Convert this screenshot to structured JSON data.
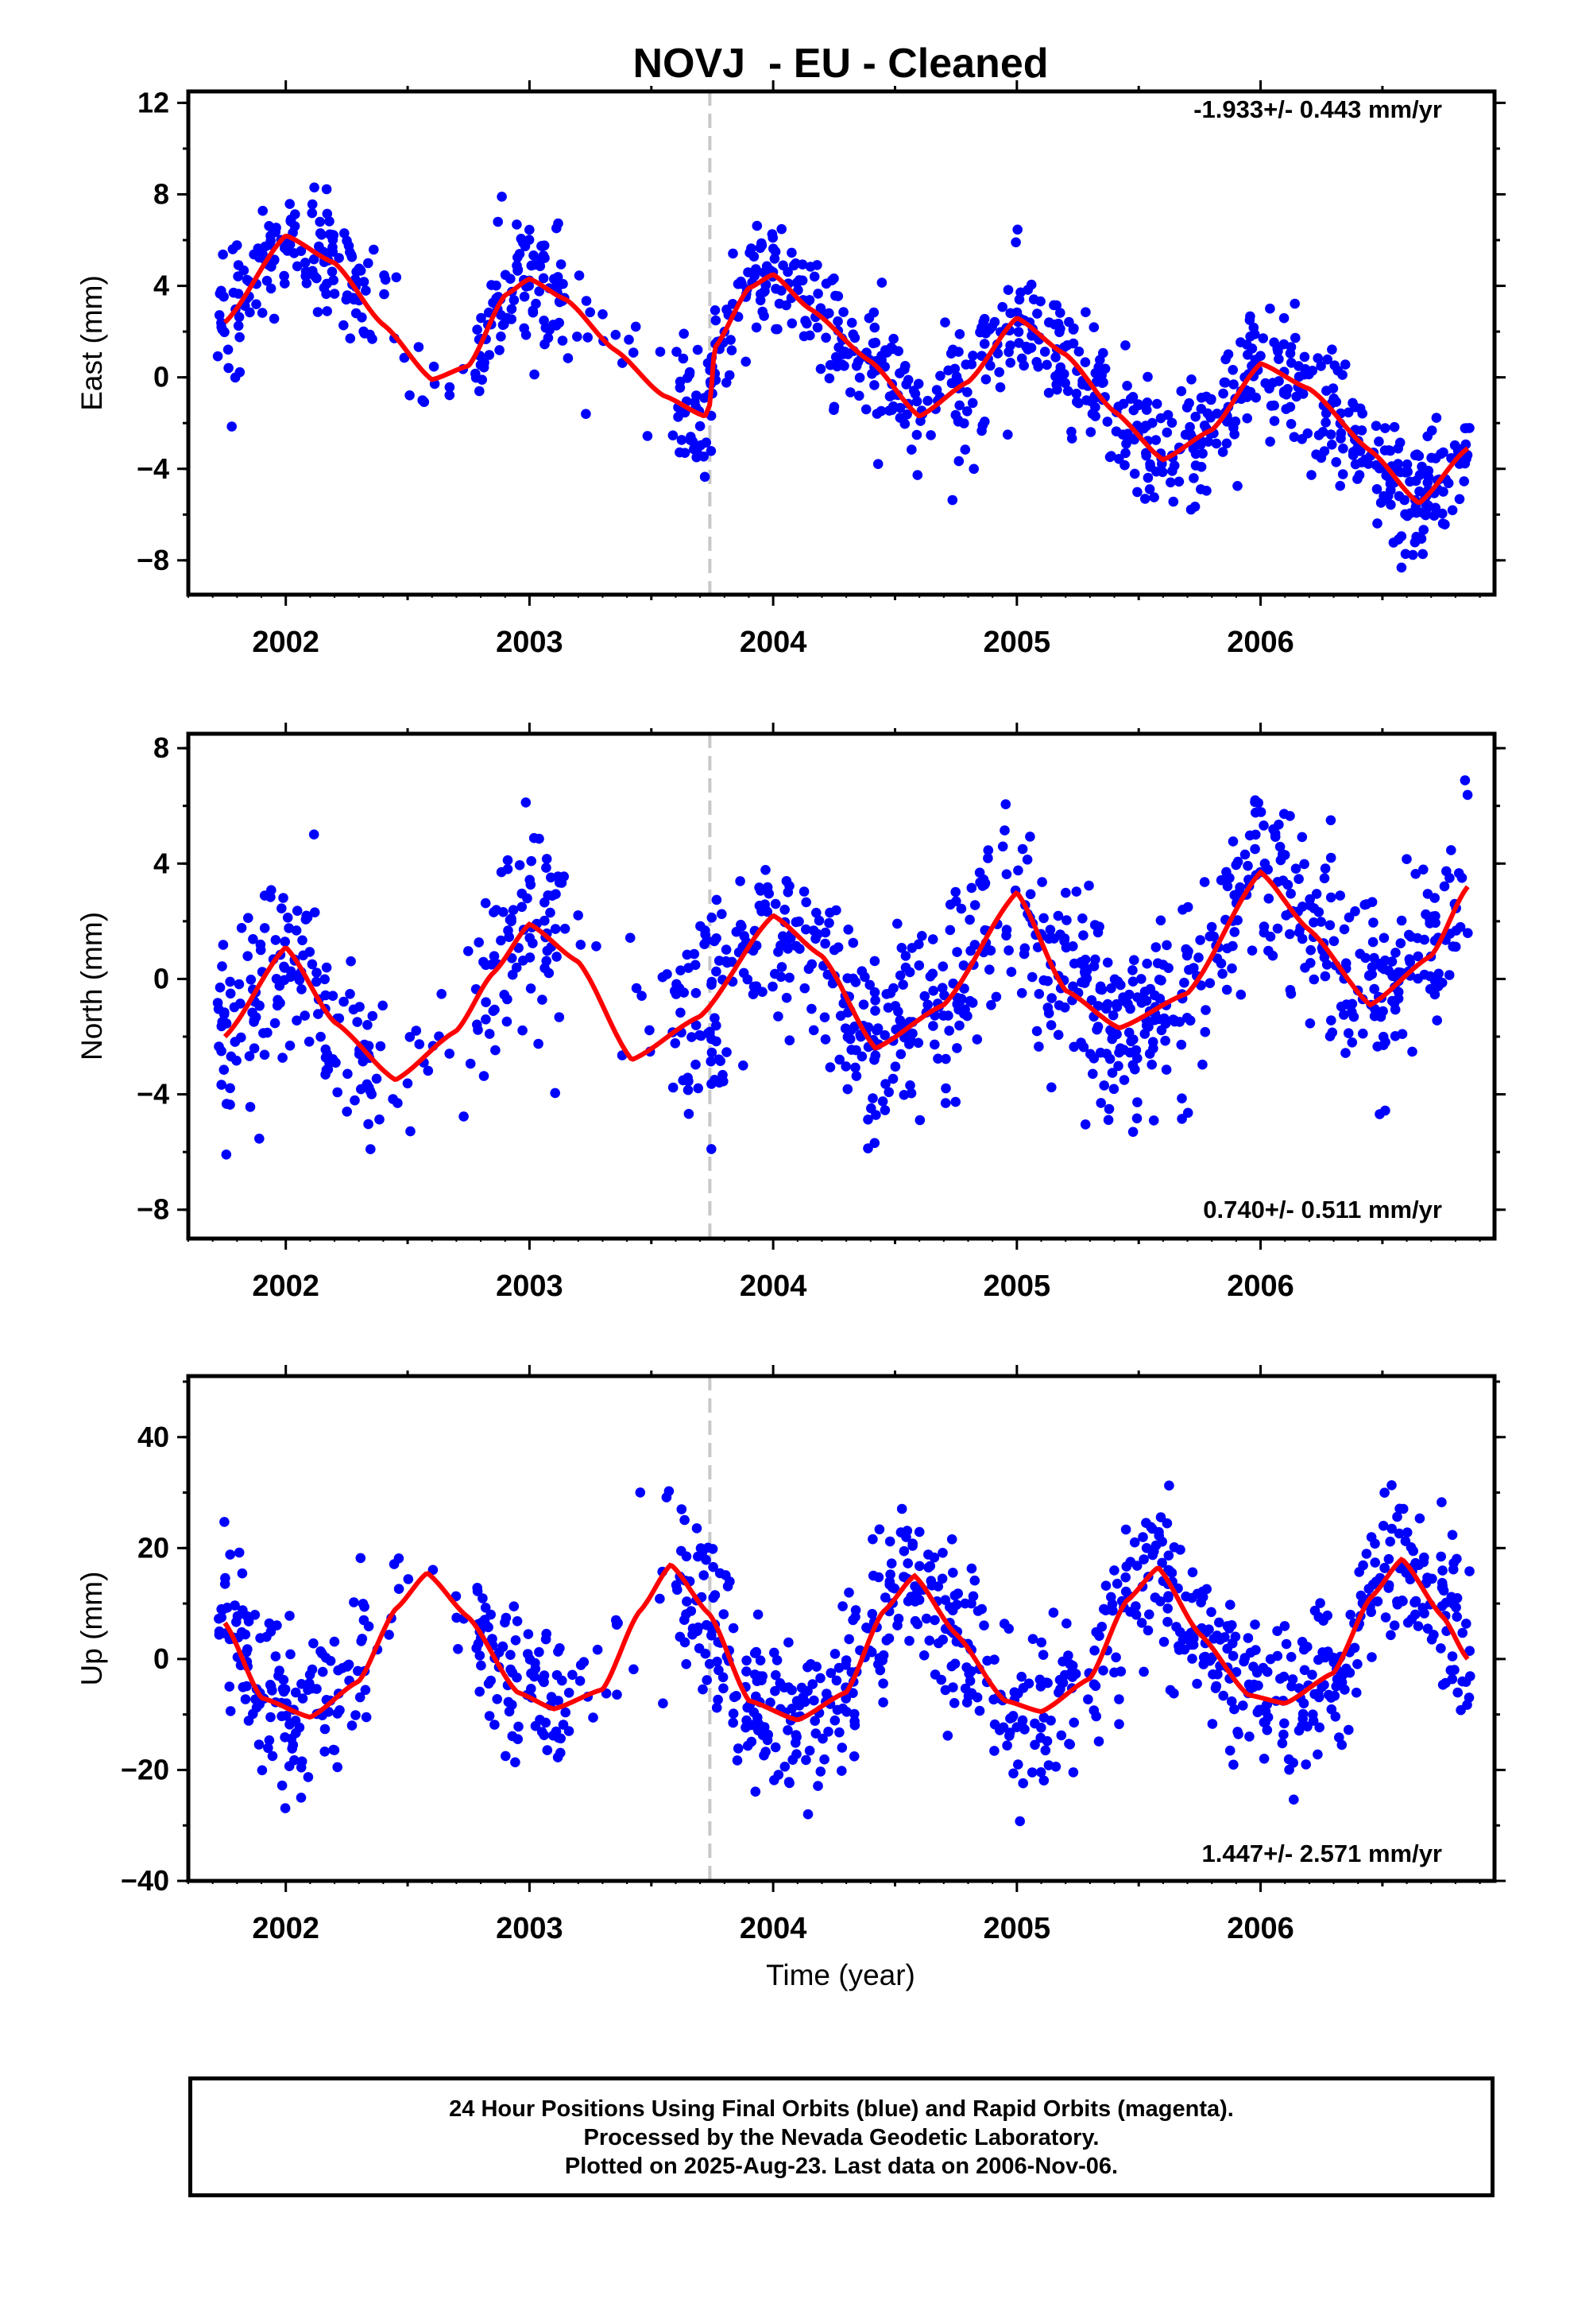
{
  "title": "NOVJ  - EU - Cleaned",
  "xlabel": "Time (year)",
  "footer": [
    "24 Hour Positions Using Final Orbits (blue) and Rapid Orbits (magenta).",
    "Processed by the Nevada Geodetic Laboratory.",
    "Plotted on 2025-Aug-23. Last data on 2006-Nov-06."
  ],
  "colors": {
    "points": "#0000ff",
    "fit": "#ff0000",
    "marker_line": "#c8c8c8",
    "axes": "#000000"
  },
  "chart_data": [
    {
      "type": "scatter",
      "ylabel": "East (mm)",
      "rate": "-1.933+/- 0.443 mm/yr",
      "xlim": [
        2001.6,
        2006.96
      ],
      "ylim": [
        -9.5,
        12.5
      ],
      "yticks": [
        -8,
        -4,
        0,
        4,
        8,
        12
      ],
      "xticks": [
        2002,
        2003,
        2004,
        2005,
        2006
      ],
      "marker_x": 2003.74,
      "trend": {
        "mean": 0.0,
        "rate": -1.933,
        "t0": 2004.3
      },
      "step": {
        "at": 2003.74,
        "size": 2.6
      },
      "fit_x": [
        2001.75,
        2002.0,
        2002.2,
        2002.4,
        2002.6,
        2002.75,
        2002.9,
        2003.0,
        2003.15,
        2003.35,
        2003.55,
        2003.72,
        2003.74,
        2003.76,
        2003.9,
        2004.0,
        2004.15,
        2004.4,
        2004.6,
        2004.8,
        2005.0,
        2005.2,
        2005.4,
        2005.6,
        2005.8,
        2006.0,
        2006.2,
        2006.45,
        2006.65,
        2006.85
      ],
      "fit_y": [
        2.4,
        6.2,
        5.0,
        2.3,
        -0.1,
        0.5,
        3.6,
        4.3,
        3.4,
        1.2,
        -0.8,
        -1.7,
        -1.2,
        1.3,
        3.9,
        4.5,
        3.0,
        0.7,
        -1.7,
        -0.2,
        2.6,
        1.0,
        -1.5,
        -3.6,
        -2.3,
        0.6,
        -0.5,
        -3.2,
        -5.5,
        -3.1
      ],
      "seasonal": {
        "amp": 2.2,
        "phase": 0.0
      },
      "scatter_sd": 1.4
    },
    {
      "type": "scatter",
      "ylabel": "North (mm)",
      "rate": "0.740+/- 0.511 mm/yr",
      "xlim": [
        2001.6,
        2006.96
      ],
      "ylim": [
        -9,
        8.5
      ],
      "yticks": [
        -8,
        -4,
        0,
        4,
        8
      ],
      "xticks": [
        2002,
        2003,
        2004,
        2005,
        2006
      ],
      "marker_x": 2003.74,
      "fit_x": [
        2001.75,
        2002.0,
        2002.2,
        2002.45,
        2002.7,
        2002.85,
        2003.0,
        2003.2,
        2003.42,
        2003.7,
        2004.0,
        2004.2,
        2004.42,
        2004.7,
        2005.0,
        2005.2,
        2005.42,
        2005.7,
        2006.0,
        2006.2,
        2006.45,
        2006.7,
        2006.85
      ],
      "fit_y": [
        -2.0,
        1.1,
        -1.5,
        -3.5,
        -1.8,
        0.2,
        1.9,
        0.6,
        -2.8,
        -1.3,
        2.2,
        0.8,
        -2.4,
        -0.9,
        3.0,
        -0.4,
        -1.7,
        -0.5,
        3.7,
        1.7,
        -0.9,
        0.8,
        3.2
      ],
      "scatter_sd": 1.6
    },
    {
      "type": "scatter",
      "ylabel": "Up (mm)",
      "rate": "1.447+/- 2.571 mm/yr",
      "xlim": [
        2001.6,
        2006.96
      ],
      "ylim": [
        -40,
        51
      ],
      "yticks": [
        -40,
        -20,
        0,
        20,
        40
      ],
      "xticks": [
        2002,
        2003,
        2004,
        2005,
        2006
      ],
      "marker_x": 2003.74,
      "fit_x": [
        2001.75,
        2001.9,
        2002.1,
        2002.3,
        2002.45,
        2002.58,
        2002.75,
        2002.95,
        2003.1,
        2003.3,
        2003.45,
        2003.58,
        2003.74,
        2003.9,
        2004.1,
        2004.3,
        2004.45,
        2004.58,
        2004.75,
        2004.95,
        2005.1,
        2005.3,
        2005.45,
        2005.58,
        2005.75,
        2005.95,
        2006.1,
        2006.3,
        2006.45,
        2006.58,
        2006.75,
        2006.85
      ],
      "fit_y": [
        6.5,
        -7.0,
        -10.5,
        -4.0,
        9.0,
        15.5,
        7.5,
        -6.0,
        -9.0,
        -5.5,
        8.5,
        17.0,
        8.0,
        -7.5,
        -11.0,
        -6.0,
        8.5,
        15.0,
        4.5,
        -7.5,
        -9.5,
        -3.5,
        10.5,
        16.5,
        4.5,
        -6.5,
        -8.0,
        -2.5,
        11.0,
        18.0,
        7.5,
        0.0
      ],
      "scatter_sd": 7.5
    }
  ]
}
